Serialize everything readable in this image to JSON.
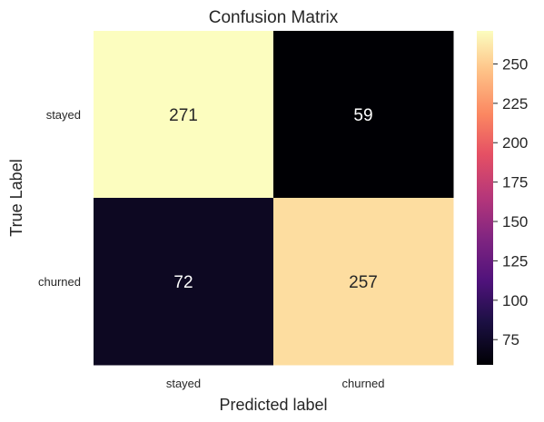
{
  "chart_data": {
    "type": "heatmap",
    "title": "Confusion Matrix",
    "xlabel": "Predicted label",
    "ylabel": "True Label",
    "x_categories": [
      "stayed",
      "churned"
    ],
    "y_categories": [
      "stayed",
      "churned"
    ],
    "values": [
      [
        271,
        59
      ],
      [
        72,
        257
      ]
    ],
    "colormap": "magma",
    "colorbar": {
      "range": [
        59,
        271
      ],
      "ticks": [
        75,
        100,
        125,
        150,
        175,
        200,
        225,
        250
      ]
    },
    "grid": false
  }
}
